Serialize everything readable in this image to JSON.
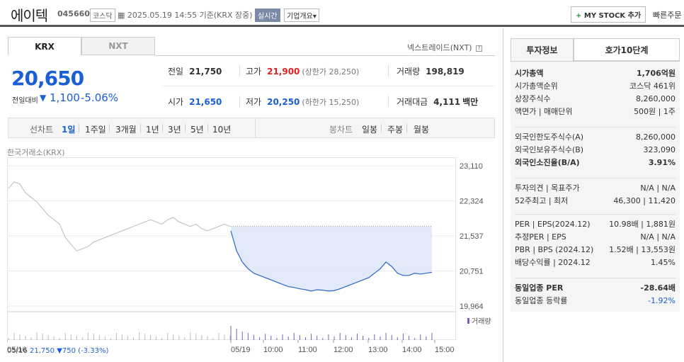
{
  "header": {
    "name": "에이텍",
    "code": "045660",
    "market": "코스닥",
    "datetime": "2025.05.19 14:55  기준(KRX 장중)",
    "realtime": "실시간",
    "company_info": "기업개요",
    "my_stock": "MY STOCK 추가",
    "quick_order": "빠른주문"
  },
  "tabs": {
    "krx": "KRX",
    "nxt": "NXT",
    "nxt_link": "넥스트레이드(NXT)"
  },
  "quote": {
    "price": "20,650",
    "change_label": "전일대비",
    "change_value": "1,100",
    "change_pct": "-5.06%",
    "prev_close_label": "전일",
    "prev_close": "21,750",
    "high_label": "고가",
    "high": "21,900",
    "upper_limit": "(상한가 28,250)",
    "volume_label": "거래량",
    "volume": "198,819",
    "open_label": "시가",
    "open": "21,650",
    "low_label": "저가",
    "low": "20,250",
    "lower_limit": "(하한가 15,250)",
    "amount_label": "거래대금",
    "amount": "4,111",
    "amount_unit": "백만"
  },
  "periods": {
    "line_label": "선차트",
    "items": [
      "1일",
      "1주일",
      "3개월",
      "1년",
      "3년",
      "5년",
      "10년"
    ],
    "active": "1일",
    "candle_label": "봉차트",
    "candles": [
      "일봉",
      "주봉",
      "월봉"
    ]
  },
  "exchange_label": "한국거래소(KRX)",
  "chart_data": {
    "type": "line",
    "y_ticks": [
      "23,110",
      "22,324",
      "21,537",
      "20,751",
      "19,964"
    ],
    "ylim": [
      19964,
      23110
    ],
    "x_ticks": [
      "05/16",
      "05/19",
      "10:00",
      "11:00",
      "12:00",
      "13:00",
      "14:00",
      "15:00"
    ],
    "prev_close": 21750,
    "volume_label": "거래량",
    "series": [
      {
        "name": "05/16",
        "values": [
          22600,
          22750,
          22700,
          22500,
          22400,
          22300,
          22150,
          22000,
          21900,
          21800,
          21500,
          21350,
          21200,
          21250,
          21300,
          21400,
          21450,
          21500,
          21550,
          21600,
          21650,
          21700,
          21750,
          21800,
          21850,
          21900,
          21850,
          21800,
          21900,
          21950,
          21850,
          21800,
          21750,
          21800,
          21700,
          21650,
          21700,
          21750,
          21800,
          21750
        ]
      },
      {
        "name": "05/19",
        "values": [
          21650,
          21200,
          20950,
          20800,
          20700,
          20650,
          20600,
          20550,
          20500,
          20450,
          20400,
          20380,
          20350,
          20330,
          20300,
          20330,
          20320,
          20300,
          20310,
          20350,
          20400,
          20450,
          20500,
          20550,
          20600,
          20700,
          20800,
          20950,
          20850,
          20700,
          20650,
          20650,
          20700,
          20680,
          20700,
          20720
        ]
      }
    ]
  },
  "bottom_info": {
    "date": "05/16",
    "price": "21,750",
    "change": "▼750",
    "pct": "(-3.33%)"
  },
  "right": {
    "tab_invest": "투자정보",
    "tab_hoga": "호가10단계",
    "group1": [
      {
        "k": "시가총액",
        "v": "1,706억원",
        "bold": true
      },
      {
        "k": "시가총액순위",
        "v": "코스닥 461위"
      },
      {
        "k": "상장주식수",
        "v": "8,260,000"
      },
      {
        "k": "액면가 | 매매단위",
        "v": "500원 | 1주"
      }
    ],
    "group2": [
      {
        "k": "외국인한도주식수(A)",
        "v": "8,260,000"
      },
      {
        "k": "외국인보유주식수(B)",
        "v": "323,090"
      },
      {
        "k": "외국인소진율(B/A)",
        "v": "3.91%",
        "bold": true
      }
    ],
    "group3": [
      {
        "k": "투자의견 | 목표주가",
        "v": "N/A | N/A"
      },
      {
        "k": "52주최고 | 최저",
        "v": "46,300 | 11,420"
      }
    ],
    "group4": [
      {
        "k": "PER | EPS(2024.12)",
        "v": "10.98배 | 1,881원"
      },
      {
        "k": "추정PER | EPS",
        "v": "N/A | N/A"
      },
      {
        "k": "PBR | BPS (2024.12)",
        "v": "1.52배 | 13,553원"
      },
      {
        "k": "배당수익률 | 2024.12",
        "v": "1.45%"
      }
    ],
    "group5": [
      {
        "k": "동일업종 PER",
        "v": "-28.64배",
        "bold": true
      },
      {
        "k": "동일업종 등락률",
        "v": "-1.92%",
        "blue": true
      }
    ]
  }
}
